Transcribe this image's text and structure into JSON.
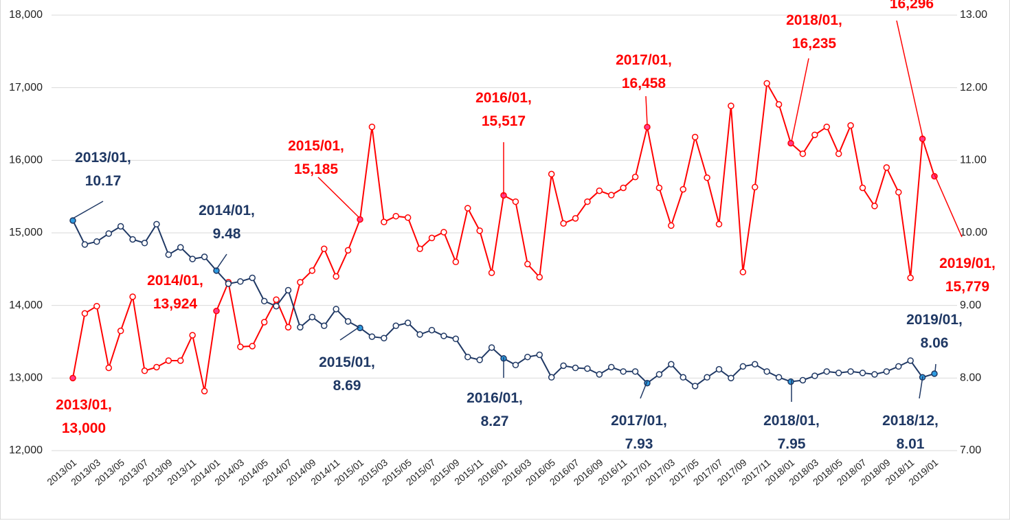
{
  "chart_data": {
    "type": "line",
    "categories": [
      "2013/01",
      null,
      "2013/03",
      null,
      "2013/05",
      null,
      "2013/07",
      null,
      "2013/09",
      null,
      "2013/11",
      null,
      "2014/01",
      null,
      "2014/03",
      null,
      "2014/05",
      null,
      "2014/07",
      null,
      "2014/09",
      null,
      "2014/11",
      null,
      "2015/01",
      null,
      "2015/03",
      null,
      "2015/05",
      null,
      "2015/07",
      null,
      "2015/09",
      null,
      "2015/11",
      null,
      "2016/01",
      null,
      "2016/03",
      null,
      "2016/05",
      null,
      "2016/07",
      null,
      "2016/09",
      null,
      "2016/11",
      null,
      "2017/01",
      null,
      "2017/03",
      null,
      "2017/05",
      null,
      "2017/07",
      null,
      "2017/09",
      null,
      "2017/11",
      null,
      "2018/01",
      null,
      "2018/03",
      null,
      "2018/05",
      null,
      "2018/07",
      null,
      "2018/09",
      null,
      "2018/11",
      null,
      "2019/01"
    ],
    "ylim": [
      12000,
      18000
    ],
    "yticks": [
      {
        "value": 12000,
        "label": "12,000"
      },
      {
        "value": 13000,
        "label": "13,000"
      },
      {
        "value": 14000,
        "label": "14,000"
      },
      {
        "value": 15000,
        "label": "15,000"
      },
      {
        "value": 16000,
        "label": "16,000"
      },
      {
        "value": 17000,
        "label": "17,000"
      },
      {
        "value": 18000,
        "label": "18,000"
      }
    ],
    "y2lim": [
      7,
      13
    ],
    "y2ticks": [
      {
        "value": 7,
        "label": "7.00"
      },
      {
        "value": 8,
        "label": "8.00"
      },
      {
        "value": 9,
        "label": "9.00"
      },
      {
        "value": 10,
        "label": "10.00"
      },
      {
        "value": 11,
        "label": "11.00"
      },
      {
        "value": 12,
        "label": "12.00"
      },
      {
        "value": 13,
        "label": "13.00"
      }
    ],
    "grid": true,
    "series": [
      {
        "color": "#ff0000",
        "marker_fill": "#ffffff",
        "highlight_fill": "#ff3c8c",
        "values": [
          13000,
          13890,
          13990,
          13140,
          13650,
          14120,
          13100,
          13150,
          13240,
          13240,
          13590,
          12820,
          13924,
          14320,
          13430,
          13440,
          13770,
          14080,
          13700,
          14320,
          14480,
          14780,
          14400,
          14760,
          15185,
          16460,
          15150,
          15230,
          15210,
          14780,
          14930,
          15010,
          14600,
          15340,
          15030,
          14450,
          15517,
          15430,
          14570,
          14390,
          15810,
          15130,
          15200,
          15430,
          15580,
          15520,
          15620,
          15770,
          16458,
          15620,
          15100,
          15600,
          16320,
          15760,
          15120,
          16750,
          14460,
          15630,
          17060,
          16770,
          16235,
          16090,
          16350,
          16460,
          16090,
          16480,
          15620,
          15370,
          15900,
          15560,
          14380,
          16296,
          15779
        ],
        "value_labels": [
          "2013/01,\n13,000",
          null,
          null,
          null,
          null,
          null,
          null,
          null,
          null,
          null,
          null,
          null,
          "2014/01,\n13,924",
          null,
          null,
          null,
          null,
          null,
          null,
          null,
          null,
          null,
          null,
          null,
          "2015/01,\n15,185",
          null,
          null,
          null,
          null,
          null,
          null,
          null,
          null,
          null,
          null,
          null,
          "2016/01,\n15,517",
          null,
          null,
          null,
          null,
          null,
          null,
          null,
          null,
          null,
          null,
          null,
          "2017/01,\n16,458",
          null,
          null,
          null,
          null,
          null,
          null,
          null,
          null,
          null,
          null,
          null,
          "2018/01,\n16,235",
          null,
          null,
          null,
          null,
          null,
          null,
          null,
          null,
          null,
          null,
          "16,296",
          "2019/01,\n15,779"
        ]
      },
      {
        "color": "#1f3864",
        "marker_fill": "#ffffff",
        "highlight_fill": "#2e9be0",
        "axis": "y2",
        "values": [
          10.17,
          9.84,
          9.88,
          9.99,
          10.09,
          9.91,
          9.86,
          10.12,
          9.7,
          9.8,
          9.64,
          9.67,
          9.48,
          9.3,
          9.33,
          9.38,
          9.06,
          8.99,
          9.21,
          8.7,
          8.84,
          8.72,
          8.95,
          8.78,
          8.69,
          8.57,
          8.55,
          8.72,
          8.76,
          8.6,
          8.66,
          8.58,
          8.54,
          8.29,
          8.25,
          8.42,
          8.27,
          8.18,
          8.29,
          8.32,
          8.01,
          8.17,
          8.14,
          8.13,
          8.05,
          8.15,
          8.09,
          8.09,
          7.93,
          8.05,
          8.19,
          8.01,
          7.89,
          8.01,
          8.12,
          8.0,
          8.16,
          8.19,
          8.09,
          8.01,
          7.95,
          7.97,
          8.03,
          8.09,
          8.07,
          8.09,
          8.07,
          8.05,
          8.09,
          8.16,
          8.24,
          8.01,
          8.06
        ],
        "value_labels": [
          "2013/01,\n10.17",
          null,
          null,
          null,
          null,
          null,
          null,
          null,
          null,
          null,
          null,
          null,
          "2014/01,\n9.48",
          null,
          null,
          null,
          null,
          null,
          null,
          null,
          null,
          null,
          null,
          null,
          "2015/01,\n8.69",
          null,
          null,
          null,
          null,
          null,
          null,
          null,
          null,
          null,
          null,
          null,
          "2016/01,\n8.27",
          null,
          null,
          null,
          null,
          null,
          null,
          null,
          null,
          null,
          null,
          null,
          "2017/01,\n7.93",
          null,
          null,
          null,
          null,
          null,
          null,
          null,
          null,
          null,
          null,
          null,
          "2018/01,\n7.95",
          null,
          null,
          null,
          null,
          null,
          null,
          null,
          null,
          null,
          null,
          "2018/12,\n8.01",
          "2019/01,\n8.06"
        ]
      }
    ]
  }
}
